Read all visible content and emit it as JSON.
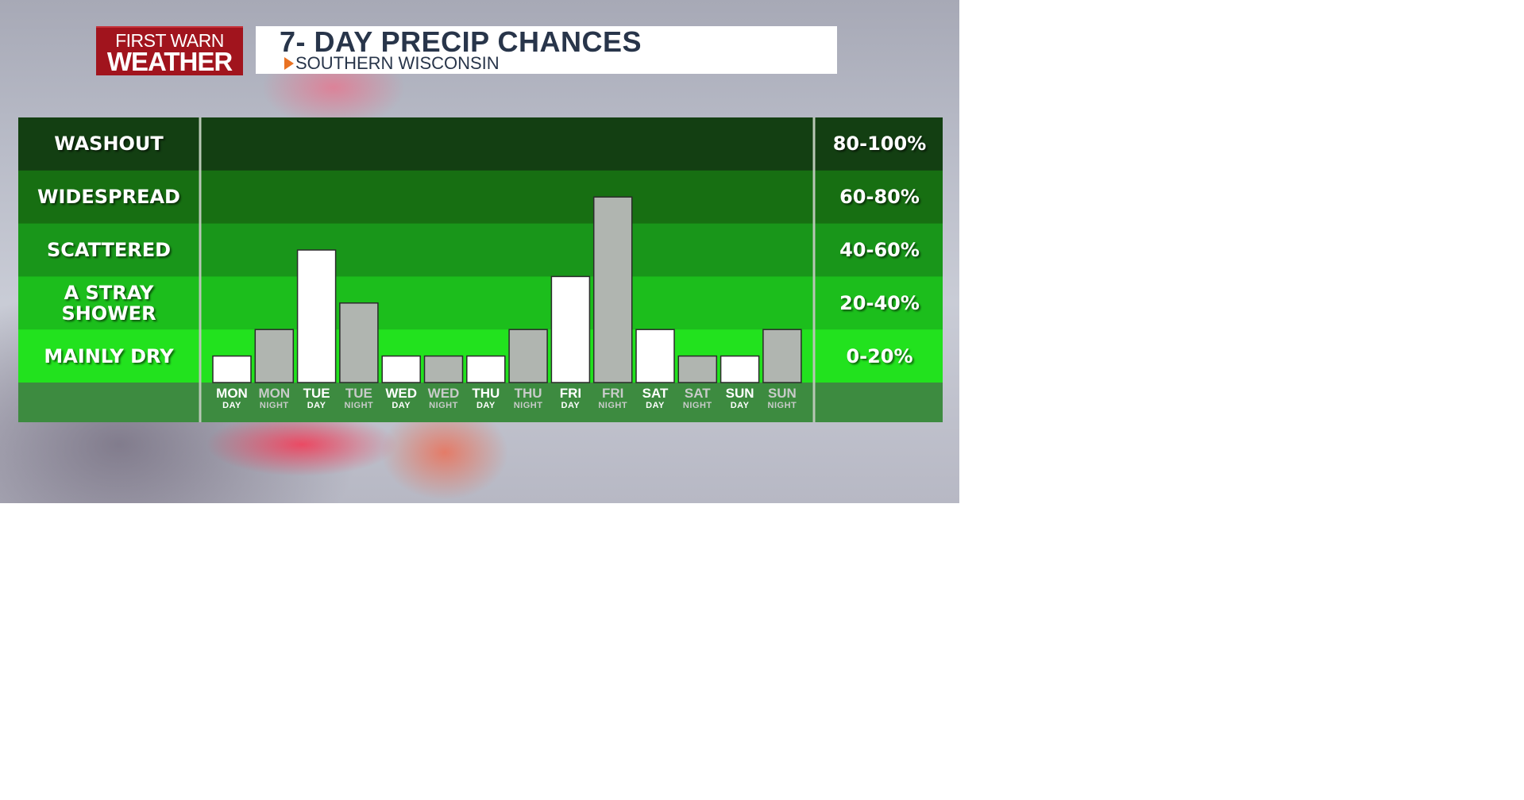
{
  "logo": {
    "line1": "FIRST WARN",
    "line2": "WEATHER"
  },
  "header": {
    "title": "7- DAY PRECIP CHANCES",
    "subtitle": "SOUTHERN WISCONSIN"
  },
  "colors": {
    "band_washout": "#133f12",
    "band_widespread": "#176f12",
    "band_scattered": "#19961a",
    "band_stray": "#1cbe1c",
    "band_dry": "#22e21e",
    "footer": "#3d8b40",
    "day_bar": "#ffffff",
    "night_bar": "#b0b5b0",
    "day_tick": "#ffffff",
    "night_tick": "#c8cbc9"
  },
  "chart_data": {
    "type": "bar",
    "title": "7- DAY PRECIP CHANCES",
    "subtitle": "SOUTHERN WISCONSIN",
    "y_categories": [
      {
        "label": "WASHOUT",
        "range": "80-100%"
      },
      {
        "label": "WIDESPREAD",
        "range": "60-80%"
      },
      {
        "label": "SCATTERED",
        "range": "40-60%"
      },
      {
        "label": "A STRAY SHOWER",
        "range": "20-40%"
      },
      {
        "label": "MAINLY DRY",
        "range": "0-20%"
      }
    ],
    "ylim": [
      0,
      100
    ],
    "categories": [
      {
        "top": "MON",
        "bottom": "DAY",
        "kind": "day"
      },
      {
        "top": "MON",
        "bottom": "NIGHT",
        "kind": "night"
      },
      {
        "top": "TUE",
        "bottom": "DAY",
        "kind": "day"
      },
      {
        "top": "TUE",
        "bottom": "NIGHT",
        "kind": "night"
      },
      {
        "top": "WED",
        "bottom": "DAY",
        "kind": "day"
      },
      {
        "top": "WED",
        "bottom": "NIGHT",
        "kind": "night"
      },
      {
        "top": "THU",
        "bottom": "DAY",
        "kind": "day"
      },
      {
        "top": "THU",
        "bottom": "NIGHT",
        "kind": "night"
      },
      {
        "top": "FRI",
        "bottom": "DAY",
        "kind": "day"
      },
      {
        "top": "FRI",
        "bottom": "NIGHT",
        "kind": "night"
      },
      {
        "top": "SAT",
        "bottom": "DAY",
        "kind": "day"
      },
      {
        "top": "SAT",
        "bottom": "NIGHT",
        "kind": "night"
      },
      {
        "top": "SUN",
        "bottom": "DAY",
        "kind": "day"
      },
      {
        "top": "SUN",
        "bottom": "NIGHT",
        "kind": "night"
      }
    ],
    "values": [
      10,
      20,
      50,
      30,
      10,
      10,
      10,
      20,
      40,
      70,
      20,
      10,
      10,
      20
    ],
    "grid": false,
    "legend": "none"
  }
}
